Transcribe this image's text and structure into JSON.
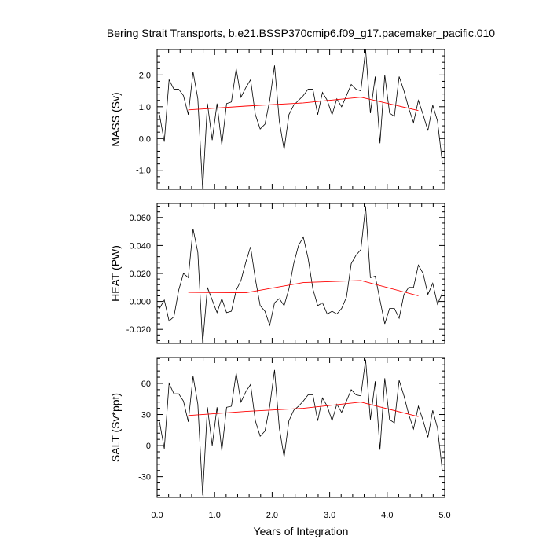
{
  "chart_data": {
    "type": "line",
    "title": "Bering Strait Transports, b.e21.BSSP370cmip6.f09_g17.pacemaker_pacific.010",
    "xlabel": "Years of Integration",
    "xlim": [
      0.0,
      5.0
    ],
    "xticks": [
      0.0,
      1.0,
      2.0,
      3.0,
      4.0,
      5.0
    ],
    "xtick_labels": [
      "0.0",
      "1.0",
      "2.0",
      "3.0",
      "4.0",
      "5.0"
    ],
    "x": [
      0.042,
      0.125,
      0.208,
      0.292,
      0.375,
      0.458,
      0.542,
      0.625,
      0.708,
      0.792,
      0.875,
      0.958,
      1.042,
      1.125,
      1.208,
      1.292,
      1.375,
      1.458,
      1.542,
      1.625,
      1.708,
      1.792,
      1.875,
      1.958,
      2.042,
      2.125,
      2.208,
      2.292,
      2.375,
      2.458,
      2.542,
      2.625,
      2.708,
      2.792,
      2.875,
      2.958,
      3.042,
      3.125,
      3.208,
      3.292,
      3.375,
      3.458,
      3.542,
      3.625,
      3.708,
      3.792,
      3.875,
      3.958,
      4.042,
      4.125,
      4.208,
      4.292,
      4.375,
      4.458,
      4.542,
      4.625,
      4.708,
      4.792,
      4.875,
      4.958
    ],
    "panels": [
      {
        "ylabel": "MASS (Sv)",
        "ylim": [
          -1.6,
          2.8
        ],
        "yticks": [
          -1.0,
          0.0,
          1.0,
          2.0
        ],
        "ytick_labels": [
          "-1.0",
          "0.0",
          "1.0",
          "2.0"
        ],
        "series": [
          {
            "name": "MASS",
            "color": "#000000",
            "values": [
              0.75,
              -0.1,
              1.85,
              1.55,
              1.55,
              1.35,
              0.75,
              2.1,
              1.25,
              -1.6,
              1.1,
              -0.05,
              1.1,
              -0.2,
              1.1,
              1.15,
              2.2,
              1.3,
              1.6,
              1.85,
              0.75,
              0.3,
              0.45,
              1.2,
              2.3,
              0.55,
              -0.35,
              0.75,
              1.05,
              1.2,
              1.35,
              1.55,
              1.55,
              0.75,
              1.45,
              1.2,
              0.75,
              1.25,
              1.0,
              1.35,
              1.7,
              1.55,
              1.5,
              2.8,
              0.8,
              1.95,
              -0.15,
              2.0,
              0.8,
              0.7,
              1.95,
              1.5,
              0.95,
              0.5,
              1.2,
              0.75,
              0.25,
              1.05,
              0.55,
              -0.75
            ]
          },
          {
            "name": "trend",
            "color": "#ff0000",
            "x": [
              0.542,
              1.542,
              2.542,
              3.542,
              4.542
            ],
            "values": [
              0.9,
              1.02,
              1.12,
              1.3,
              0.88
            ]
          }
        ]
      },
      {
        "ylabel": "HEAT (PW)",
        "ylim": [
          -0.03,
          0.07
        ],
        "yticks": [
          -0.02,
          0.0,
          0.02,
          0.04,
          0.06
        ],
        "ytick_labels": [
          "-0.020",
          "0.000",
          "0.020",
          "0.040",
          "0.060"
        ],
        "series": [
          {
            "name": "HEAT",
            "color": "#000000",
            "values": [
              -0.005,
              0.001,
              -0.014,
              -0.011,
              0.008,
              0.02,
              0.017,
              0.052,
              0.035,
              -0.03,
              0.01,
              0.001,
              -0.008,
              0.002,
              -0.008,
              -0.007,
              0.008,
              0.015,
              0.028,
              0.039,
              0.016,
              -0.003,
              -0.007,
              -0.017,
              -0.001,
              0.002,
              -0.003,
              0.009,
              0.027,
              0.04,
              0.046,
              0.031,
              0.009,
              -0.003,
              -0.001,
              -0.009,
              -0.007,
              -0.009,
              -0.005,
              0.003,
              0.027,
              0.033,
              0.037,
              0.068,
              0.017,
              0.018,
              0.001,
              -0.016,
              -0.005,
              -0.005,
              -0.012,
              0.005,
              0.01,
              0.01,
              0.026,
              0.02,
              0.005,
              0.013,
              -0.002,
              0.006
            ]
          },
          {
            "name": "trend",
            "color": "#ff0000",
            "x": [
              0.542,
              1.542,
              2.542,
              3.542,
              4.542
            ],
            "values": [
              0.0065,
              0.0062,
              0.0135,
              0.015,
              0.004
            ]
          }
        ]
      },
      {
        "ylabel": "SALT (Sv*ppt)",
        "ylim": [
          -50,
          85
        ],
        "yticks": [
          -30,
          0,
          30,
          60
        ],
        "ytick_labels": [
          "-30",
          "0",
          "30",
          "60"
        ],
        "series": [
          {
            "name": "SALT",
            "color": "#000000",
            "values": [
              23,
              -3,
              60,
              50,
              50,
              43,
              23,
              67,
              40,
              -48,
              37,
              0,
              37,
              -5,
              37,
              38,
              70,
              42,
              52,
              59,
              24,
              9,
              14,
              38,
              73,
              17,
              -11,
              24,
              34,
              38,
              43,
              49,
              49,
              24,
              46,
              38,
              24,
              40,
              32,
              43,
              54,
              49,
              48,
              83,
              25,
              62,
              -4,
              65,
              25,
              22,
              63,
              48,
              30,
              16,
              38,
              24,
              8,
              34,
              17,
              -24
            ]
          },
          {
            "name": "trend",
            "color": "#ff0000",
            "x": [
              0.542,
              1.542,
              2.542,
              3.542,
              4.542
            ],
            "values": [
              29,
              33,
              36,
              42,
              28
            ]
          }
        ]
      }
    ]
  }
}
